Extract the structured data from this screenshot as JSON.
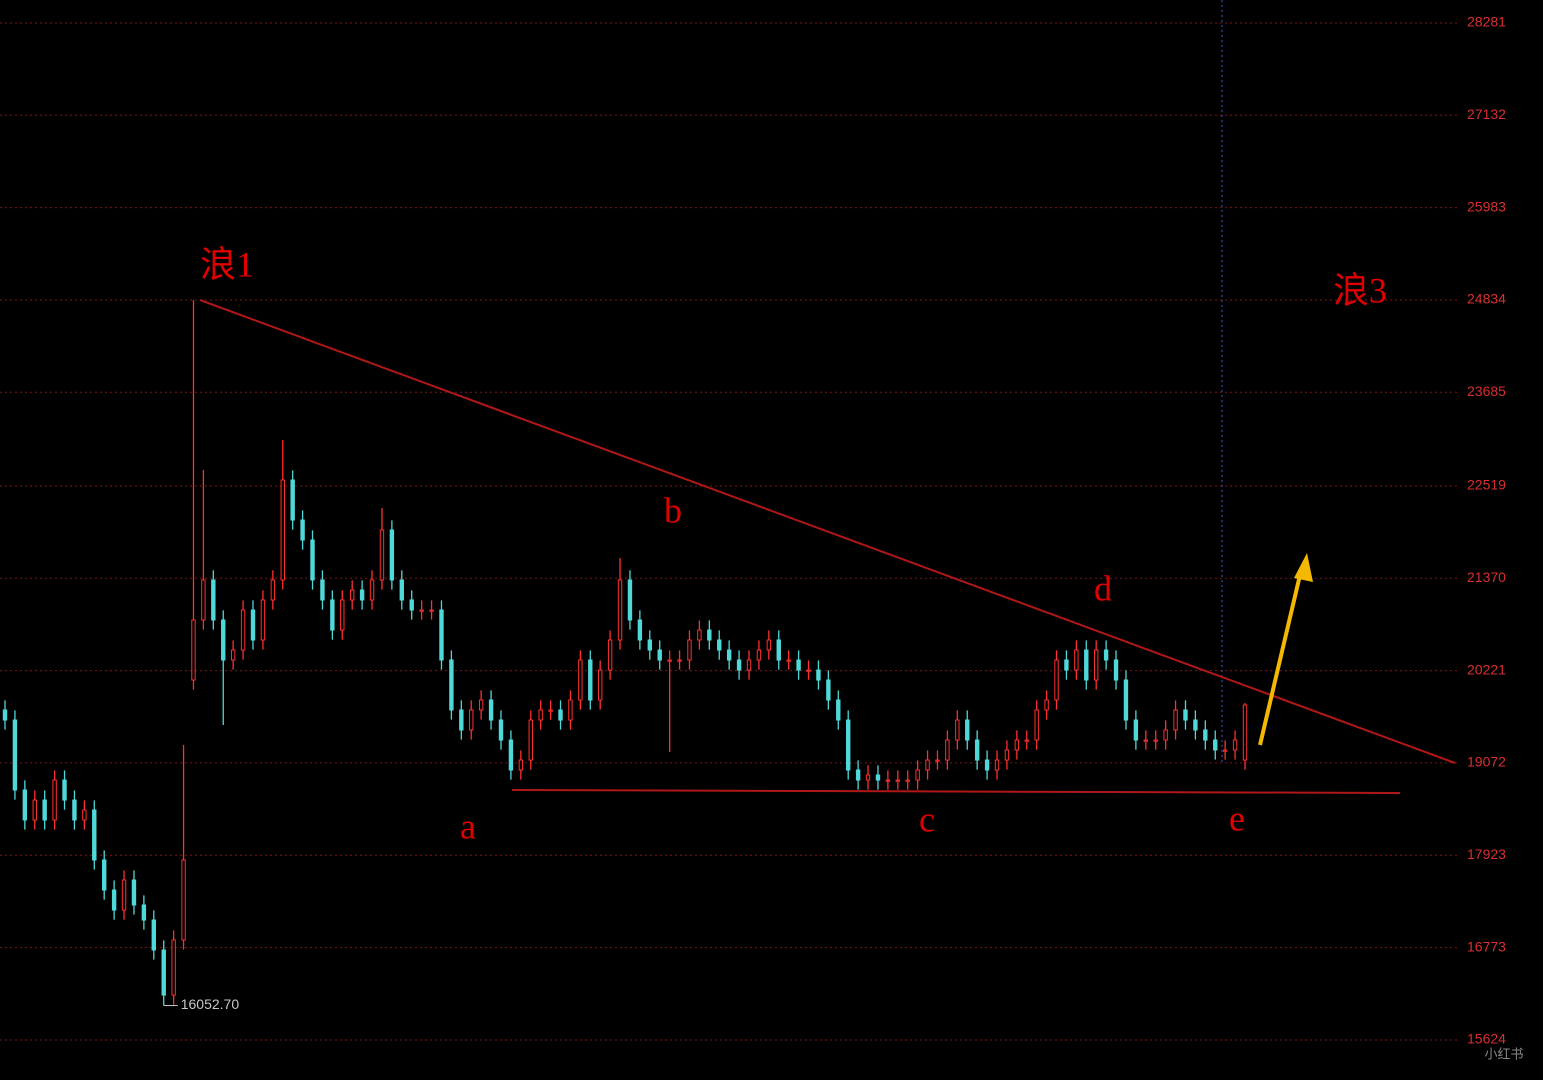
{
  "chart_data": {
    "type": "candlestick",
    "open": [
      19731,
      19606,
      18735,
      18362,
      18610,
      18362,
      18859,
      18610,
      18362,
      18486,
      17864,
      17490,
      17241,
      17615,
      17304,
      17117,
      16744,
      16183,
      16868,
      20104,
      20851,
      21349,
      20851,
      20353,
      20477,
      20975,
      20602,
      21100,
      21349,
      22593,
      22095,
      21846,
      21349,
      21100,
      20726,
      21100,
      21224,
      21100,
      21349,
      21971,
      21349,
      21100,
      20975,
      20975,
      20975,
      20353,
      19731,
      19482,
      19731,
      19855,
      19606,
      19357,
      18984,
      19108,
      19606,
      19731,
      19731,
      19606,
      19855,
      20353,
      19855,
      20228,
      20602,
      21349,
      20851,
      20602,
      20477,
      20353,
      20353,
      20353,
      20602,
      20726,
      20602,
      20477,
      20353,
      20228,
      20353,
      20477,
      20602,
      20353,
      20353,
      20228,
      20228,
      20104,
      19855,
      19606,
      18984,
      18859,
      18922,
      18859,
      18859,
      18859,
      18859,
      18984,
      19108,
      19108,
      19357,
      19606,
      19357,
      19108,
      18984,
      19108,
      19233,
      19357,
      19357,
      19731,
      19855,
      20353,
      20228,
      20477,
      20104,
      20477,
      20353,
      20104,
      19606,
      19357,
      19357,
      19357,
      19482,
      19731,
      19606,
      19482,
      19357,
      19233,
      19233,
      19108
    ],
    "high": [
      19851,
      19726,
      18855,
      18730,
      18730,
      18979,
      18979,
      18730,
      18606,
      18606,
      17984,
      17610,
      17735,
      17735,
      17424,
      17237,
      16864,
      16988,
      19295,
      24834,
      22718,
      21469,
      20971,
      20597,
      21095,
      21095,
      21220,
      21469,
      23091,
      22713,
      22215,
      21966,
      21469,
      21220,
      21220,
      21344,
      21344,
      21469,
      22245,
      22091,
      21469,
      21220,
      21095,
      21095,
      21095,
      20473,
      19851,
      19851,
      19975,
      19975,
      19726,
      19477,
      19228,
      19726,
      19851,
      19851,
      19851,
      19975,
      20473,
      20473,
      20348,
      20722,
      21622,
      21469,
      20971,
      20722,
      20597,
      20473,
      20473,
      20722,
      20846,
      20846,
      20722,
      20597,
      20473,
      20473,
      20597,
      20722,
      20722,
      20473,
      20473,
      20348,
      20348,
      20224,
      19975,
      19726,
      19104,
      19042,
      19042,
      18979,
      18979,
      18979,
      19104,
      19228,
      19228,
      19477,
      19726,
      19726,
      19477,
      19228,
      19228,
      19353,
      19477,
      19477,
      19851,
      19975,
      20473,
      20473,
      20597,
      20597,
      20597,
      20597,
      20473,
      20224,
      19726,
      19477,
      19477,
      19602,
      19851,
      19851,
      19726,
      19602,
      19477,
      19353,
      19477,
      19818
    ],
    "low": [
      19486,
      18615,
      18242,
      18242,
      18242,
      18242,
      18490,
      18242,
      18242,
      17744,
      17370,
      17121,
      17121,
      17184,
      16997,
      16624,
      16052.7,
      16063,
      16748,
      19984,
      20731,
      20731,
      19544,
      20233,
      20357,
      20482,
      20482,
      20980,
      21229,
      21975,
      21726,
      21229,
      20980,
      20606,
      20606,
      20980,
      20980,
      20980,
      21229,
      21229,
      20980,
      20855,
      20855,
      20855,
      20233,
      19611,
      19362,
      19362,
      19611,
      19486,
      19237,
      18864,
      18864,
      18988,
      19486,
      19611,
      19486,
      19486,
      19735,
      19735,
      19735,
      20108,
      20482,
      20731,
      20482,
      20357,
      20233,
      19208,
      20233,
      20233,
      20482,
      20482,
      20357,
      20233,
      20108,
      20108,
      20233,
      20357,
      20233,
      20233,
      20108,
      20108,
      19984,
      19735,
      19486,
      18864,
      18739,
      18739,
      18739,
      18739,
      18739,
      18739,
      18739,
      18864,
      18988,
      18988,
      19237,
      19237,
      18988,
      18864,
      18864,
      18988,
      19113,
      19237,
      19237,
      19611,
      19735,
      20108,
      20108,
      19984,
      19984,
      20233,
      19984,
      19486,
      19237,
      19237,
      19237,
      19237,
      19362,
      19486,
      19362,
      19237,
      19113,
      19113,
      19113,
      18988
    ],
    "close": [
      19606,
      18735,
      18362,
      18610,
      18362,
      18859,
      18610,
      18362,
      18486,
      17864,
      17490,
      17241,
      17615,
      17304,
      17117,
      16744,
      16183,
      16868,
      17864,
      20851,
      21349,
      20851,
      20353,
      20477,
      20975,
      20602,
      21100,
      21349,
      22593,
      22095,
      21846,
      21349,
      21100,
      20726,
      21100,
      21224,
      21100,
      21349,
      21971,
      21349,
      21100,
      20975,
      20975,
      20975,
      20353,
      19731,
      19482,
      19731,
      19855,
      19606,
      19357,
      18984,
      19108,
      19606,
      19731,
      19731,
      19606,
      19855,
      20353,
      19855,
      20228,
      20602,
      21349,
      20851,
      20602,
      20477,
      20353,
      20353,
      20353,
      20602,
      20726,
      20602,
      20477,
      20353,
      20228,
      20353,
      20477,
      20602,
      20353,
      20353,
      20228,
      20228,
      20104,
      19855,
      19606,
      18984,
      18859,
      18922,
      18859,
      18859,
      18859,
      18859,
      18984,
      19108,
      19108,
      19357,
      19606,
      19357,
      19108,
      18984,
      19108,
      19233,
      19357,
      19357,
      19731,
      19855,
      20353,
      20228,
      20477,
      20104,
      20477,
      20353,
      20104,
      19606,
      19357,
      19357,
      19357,
      19482,
      19731,
      19606,
      19482,
      19357,
      19233,
      19233,
      19357,
      19793
    ],
    "up_color": "#ff3030",
    "down_color": "#4fd8d8",
    "ylim": [
      15126,
      28567
    ],
    "yticks": [
      15624,
      16773,
      17923,
      19072,
      20221,
      21370,
      22519,
      23685,
      24834,
      25983,
      27132,
      28281
    ],
    "grid": true,
    "low_label": "16052.70",
    "annotations": [
      "浪1",
      "b",
      "d",
      "a",
      "c",
      "e",
      "浪3"
    ],
    "watermark": "小红书"
  }
}
